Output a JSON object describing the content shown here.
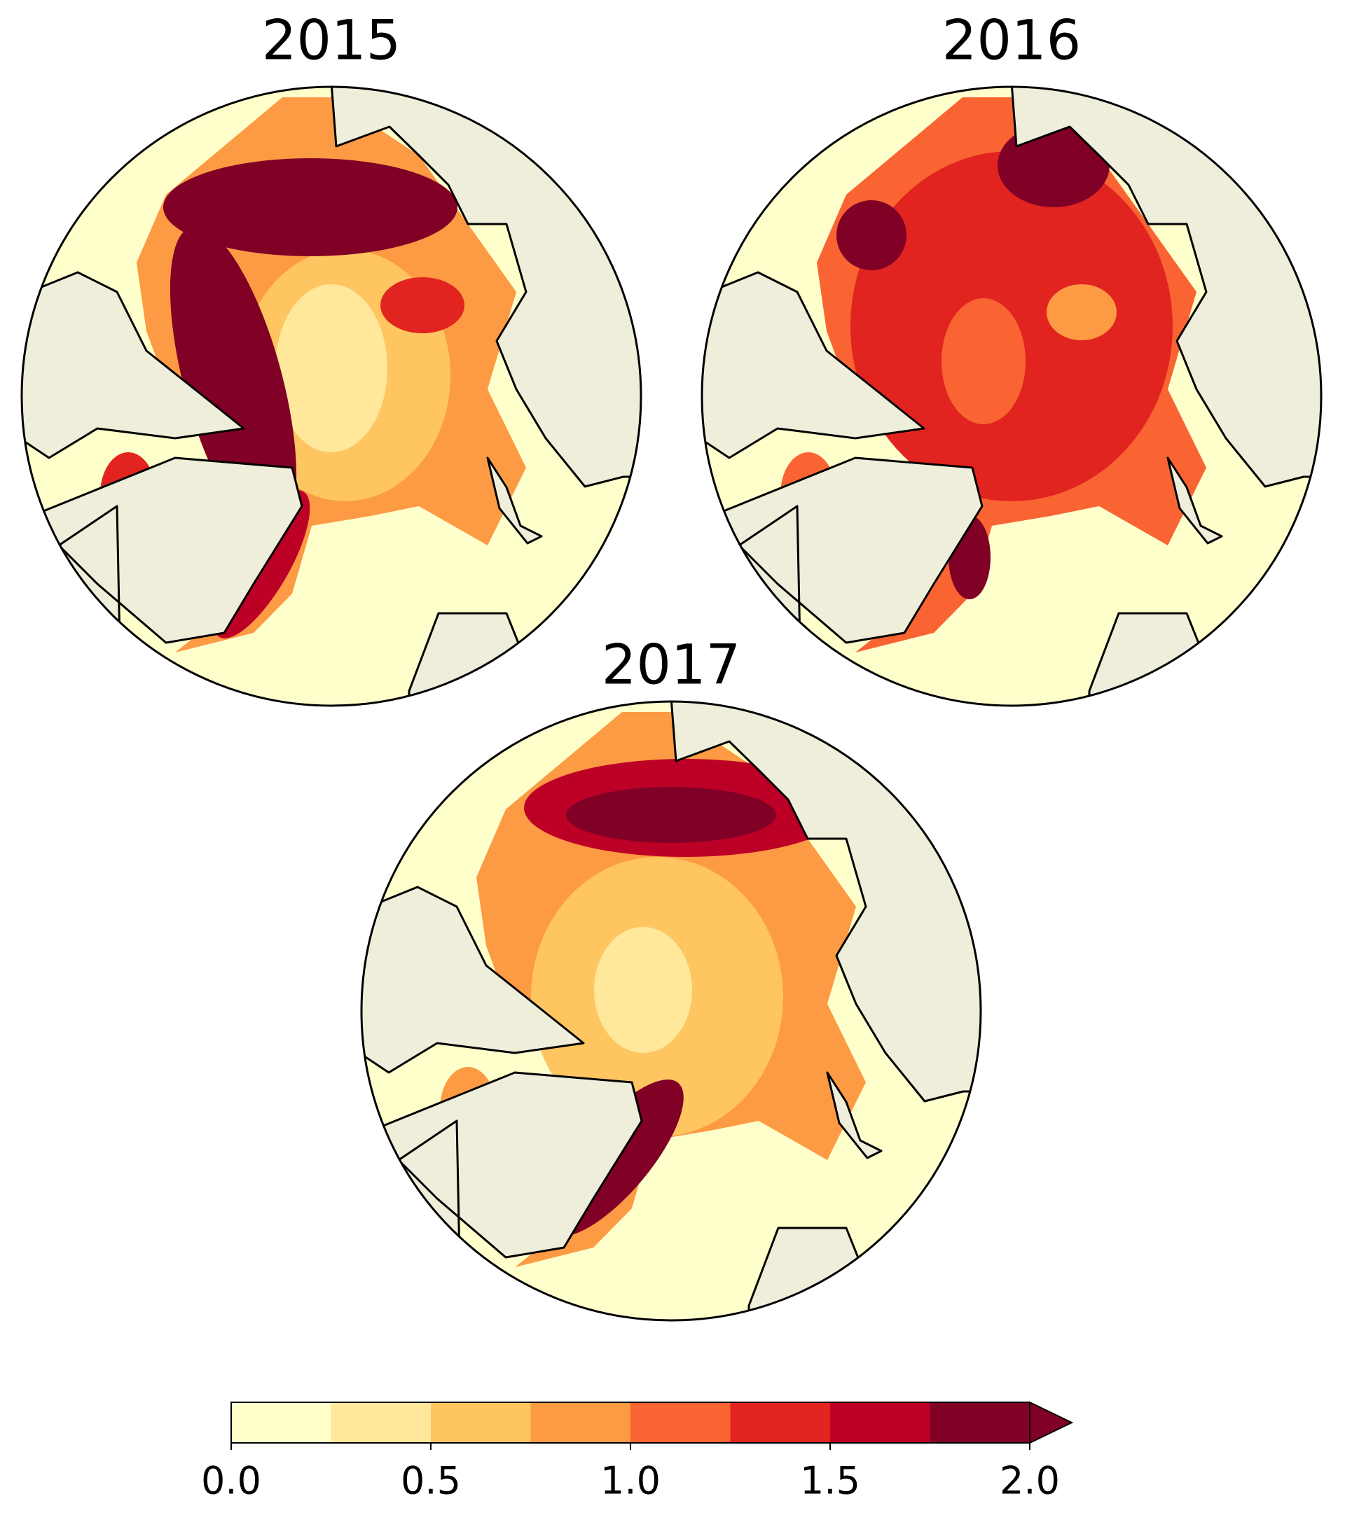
{
  "maps": [
    {
      "title": "2015"
    },
    {
      "title": "2016"
    },
    {
      "title": "2017"
    }
  ],
  "colorbar": {
    "levels": [
      0,
      0.25,
      0.5,
      0.75,
      1.0,
      1.25,
      1.5,
      1.75,
      2.0
    ],
    "colors": [
      "#ffffcc",
      "#ffe79b",
      "#fec561",
      "#fd9a44",
      "#f96432",
      "#e1241f",
      "#bd0026",
      "#800026"
    ],
    "extend_color": "#800026",
    "ticks": [
      {
        "value": 0,
        "label": "0.0"
      },
      {
        "value": 0.5,
        "label": "0.5"
      },
      {
        "value": 1.0,
        "label": "1.0"
      },
      {
        "value": 1.5,
        "label": "1.5"
      },
      {
        "value": 2.0,
        "label": "2.0"
      }
    ]
  }
}
